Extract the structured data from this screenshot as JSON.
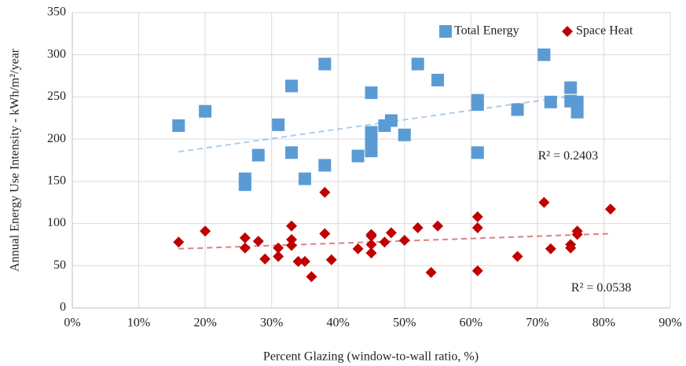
{
  "chart_data": {
    "type": "scatter",
    "x_label": "Percent Glazing (window-to-wall ratio, %)",
    "y_label": "Annual Energy Use Intensity - kWh/m²/year",
    "xlim": [
      0,
      90
    ],
    "xticks": [
      {
        "value": 0,
        "label": "0%"
      },
      {
        "value": 10,
        "label": "10%"
      },
      {
        "value": 20,
        "label": "20%"
      },
      {
        "value": 30,
        "label": "30%"
      },
      {
        "value": 40,
        "label": "40%"
      },
      {
        "value": 50,
        "label": "50%"
      },
      {
        "value": 60,
        "label": "60%"
      },
      {
        "value": 70,
        "label": "70%"
      },
      {
        "value": 80,
        "label": "80%"
      },
      {
        "value": 90,
        "label": "90%"
      }
    ],
    "ylim": [
      0,
      350
    ],
    "yticks": [
      0,
      50,
      100,
      150,
      200,
      250,
      300,
      350
    ],
    "grid": true,
    "legend": "top-right",
    "series": [
      {
        "name": "Total Energy",
        "color": "#5b9bd5",
        "marker": "square",
        "x": [
          16,
          20,
          26,
          26,
          28,
          31,
          33,
          33,
          35,
          38,
          38,
          43,
          45,
          45,
          45,
          45,
          47,
          48,
          50,
          52,
          55,
          61,
          61,
          61,
          67,
          71,
          72,
          75,
          75,
          76,
          76
        ],
        "values": [
          216,
          233,
          153,
          146,
          181,
          217,
          263,
          184,
          153,
          289,
          169,
          180,
          255,
          208,
          197,
          186,
          216,
          222,
          205,
          289,
          270,
          246,
          241,
          184,
          235,
          300,
          244,
          261,
          245,
          244,
          232
        ],
        "trend": {
          "x": [
            16,
            76
          ],
          "values": [
            185,
            252
          ],
          "label": "R² = 0.2403"
        }
      },
      {
        "name": "Space Heat",
        "color": "#c00000",
        "marker": "diamond",
        "x": [
          16,
          20,
          26,
          26,
          28,
          29,
          31,
          31,
          33,
          33,
          33,
          34,
          35,
          36,
          38,
          38,
          39,
          43,
          45,
          45,
          45,
          45,
          47,
          48,
          50,
          52,
          54,
          55,
          61,
          61,
          61,
          67,
          71,
          72,
          75,
          75,
          76,
          76,
          81
        ],
        "values": [
          78,
          91,
          83,
          71,
          79,
          58,
          71,
          61,
          97,
          81,
          74,
          55,
          55,
          37,
          137,
          88,
          57,
          70,
          87,
          85,
          75,
          65,
          78,
          89,
          80,
          95,
          42,
          97,
          108,
          95,
          44,
          61,
          125,
          70,
          75,
          71,
          91,
          87,
          117
        ],
        "trend": {
          "x": [
            16,
            81
          ],
          "values": [
            70,
            88
          ],
          "label": "R² = 0.0538"
        }
      }
    ]
  }
}
